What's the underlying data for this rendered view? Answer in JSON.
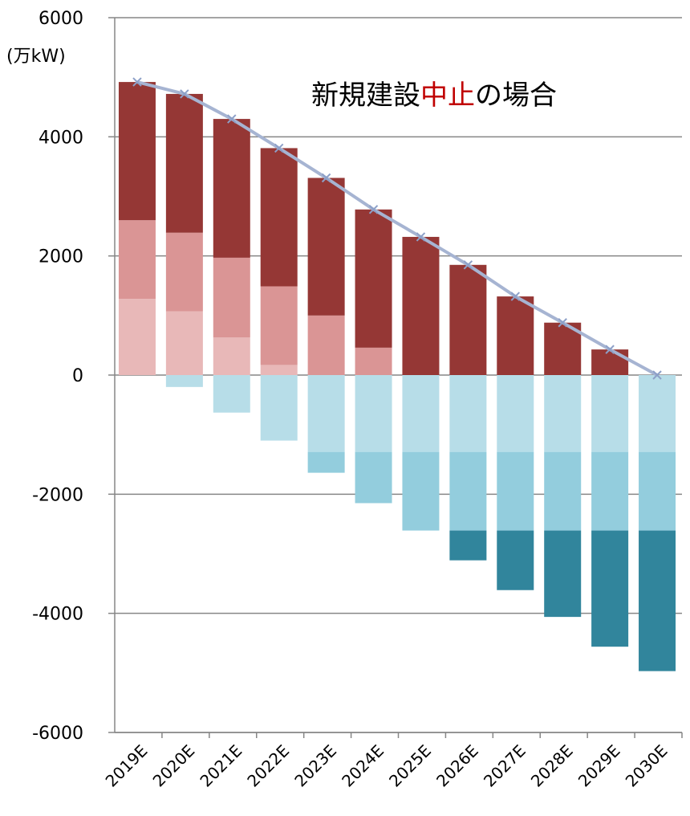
{
  "chart_data": {
    "type": "bar",
    "stacked": true,
    "title_parts": [
      {
        "text": "新規建設",
        "color": "#000000"
      },
      {
        "text": "中止",
        "color": "#c00000"
      },
      {
        "text": "の場合",
        "color": "#000000"
      }
    ],
    "ylabel": "(万kW)",
    "xlabel": "",
    "ylim": [
      -6000,
      6000
    ],
    "yticks": [
      6000,
      4000,
      2000,
      0,
      -2000,
      -4000,
      -6000
    ],
    "ytick_labels": [
      "6000",
      "4000",
      "2000",
      "0",
      "-2000",
      "-4000",
      "-6000"
    ],
    "grid": true,
    "legend": "none",
    "categories": [
      "2019E",
      "2020E",
      "2021E",
      "2022E",
      "2023E",
      "2024E",
      "2025E",
      "2026E",
      "2027E",
      "2028E",
      "2029E",
      "2030E"
    ],
    "series": [
      {
        "color": "#e8b8b8",
        "values": [
          1280,
          1070,
          630,
          170,
          0,
          0,
          0,
          0,
          0,
          0,
          0,
          0
        ]
      },
      {
        "color": "#da9595",
        "values": [
          1320,
          1320,
          1340,
          1320,
          1000,
          460,
          0,
          0,
          0,
          0,
          0,
          0
        ]
      },
      {
        "color": "#953735",
        "values": [
          2320,
          2330,
          2330,
          2320,
          2310,
          2320,
          2320,
          1850,
          1320,
          880,
          430,
          0
        ]
      },
      {
        "color": "#b7dde8",
        "values": [
          0,
          -200,
          -630,
          -1100,
          -1290,
          -1290,
          -1290,
          -1290,
          -1290,
          -1290,
          -1290,
          -1290
        ]
      },
      {
        "color": "#93cddd",
        "values": [
          0,
          0,
          0,
          0,
          -350,
          -860,
          -1320,
          -1320,
          -1320,
          -1320,
          -1320,
          -1320
        ]
      },
      {
        "color": "#31859c",
        "values": [
          0,
          0,
          0,
          0,
          0,
          0,
          0,
          -500,
          -1000,
          -1450,
          -1950,
          -2360
        ]
      }
    ],
    "line": {
      "color": "#a6b4d2",
      "marker_color": "#8da0c8",
      "marker": "x",
      "values": [
        4920,
        4720,
        4300,
        3810,
        3310,
        2780,
        2320,
        1850,
        1320,
        880,
        430,
        0
      ]
    }
  }
}
